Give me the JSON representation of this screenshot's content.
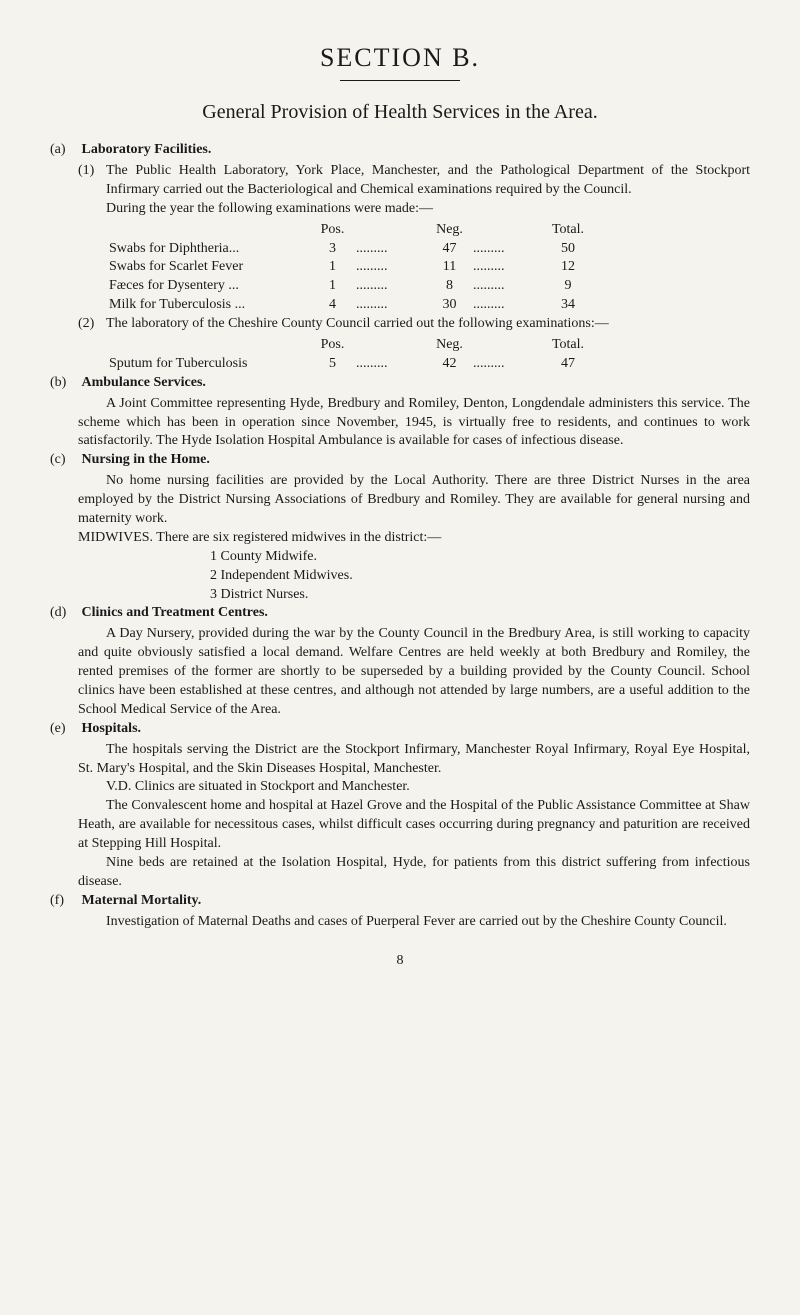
{
  "title": "SECTION B.",
  "subtitle": "General Provision of Health Services in the Area.",
  "sections": {
    "a": {
      "label": "(a)",
      "heading": "Laboratory Facilities.",
      "sub1": {
        "label": "(1)",
        "text": "The Public Health Laboratory, York Place, Manchester, and the Pathological Department of the Stockport Infirmary carried out the Bacteriological and Chemical examinations required by the Council.",
        "text2": "During the year the following examinations were made:—"
      },
      "table": {
        "headers": {
          "pos": "Pos.",
          "neg": "Neg.",
          "total": "Total."
        },
        "rows": [
          {
            "label": "Swabs for Diphtheria...",
            "pos": "3",
            "dots": ".........",
            "neg": "47",
            "dots2": ".........",
            "total": "50"
          },
          {
            "label": "Swabs for Scarlet Fever",
            "pos": "1",
            "dots": ".........",
            "neg": "11",
            "dots2": ".........",
            "total": "12"
          },
          {
            "label": "Fæces for Dysentery ...",
            "pos": "1",
            "dots": ".........",
            "neg": "8",
            "dots2": ".........",
            "total": "9"
          },
          {
            "label": "Milk for Tuberculosis ...",
            "pos": "4",
            "dots": ".........",
            "neg": "30",
            "dots2": ".........",
            "total": "34"
          }
        ]
      },
      "sub2": {
        "label": "(2)",
        "text": "The laboratory of the Cheshire County Council carried out the following examinations:—"
      },
      "table2": {
        "headers": {
          "pos": "Pos.",
          "neg": "Neg.",
          "total": "Total."
        },
        "rows": [
          {
            "label": "Sputum for Tuberculosis",
            "pos": "5",
            "dots": ".........",
            "neg": "42",
            "dots2": ".........",
            "total": "47"
          }
        ]
      }
    },
    "b": {
      "label": "(b)",
      "heading": "Ambulance Services.",
      "text": "A Joint Committee representing Hyde, Bredbury and Romiley, Denton, Longdendale administers this service. The scheme which has been in operation since November, 1945, is virtually free to residents, and continues to work satisfactorily. The Hyde Isolation Hospital Ambulance is available for cases of infectious disease."
    },
    "c": {
      "label": "(c)",
      "heading": "Nursing in the Home.",
      "text": "No home nursing facilities are provided by the Local Authority. There are three District Nurses in the area employed by the District Nursing Associations of Bredbury and Romiley. They are available for general nursing and maternity work.",
      "text2": "MIDWIVES. There are six registered midwives in the district:—",
      "list": [
        "1 County Midwife.",
        "2 Independent Midwives.",
        "3 District Nurses."
      ]
    },
    "d": {
      "label": "(d)",
      "heading": "Clinics and Treatment Centres.",
      "text": "A Day Nursery, provided during the war by the County Council in the Bredbury Area, is still working to capacity and quite obviously satisfied a local demand. Welfare Centres are held weekly at both Bredbury and Romiley, the rented premises of the former are shortly to be superseded by a building provided by the County Council. School clinics have been established at these centres, and although not attended by large numbers, are a useful addition to the School Medical Service of the Area."
    },
    "e": {
      "label": "(e)",
      "heading": "Hospitals.",
      "text": "The hospitals serving the District are the Stockport Infirmary, Manchester Royal Infirmary, Royal Eye Hospital, St. Mary's Hospital, and the Skin Diseases Hospital, Manchester.",
      "text2": "V.D. Clinics are situated in Stockport and Manchester.",
      "text3": "The Convalescent home and hospital at Hazel Grove and the Hospital of the Public Assistance Committee at Shaw Heath, are available for necessitous cases, whilst difficult cases occurring during pregnancy and paturition are received at Stepping Hill Hospital.",
      "text4": "Nine beds are retained at the Isolation Hospital, Hyde, for patients from this district suffering from infectious disease."
    },
    "f": {
      "label": "(f)",
      "heading": "Maternal Mortality.",
      "text": "Investigation of Maternal Deaths and cases of Puerperal Fever are carried out by the Cheshire County Council."
    }
  },
  "pageNum": "8"
}
